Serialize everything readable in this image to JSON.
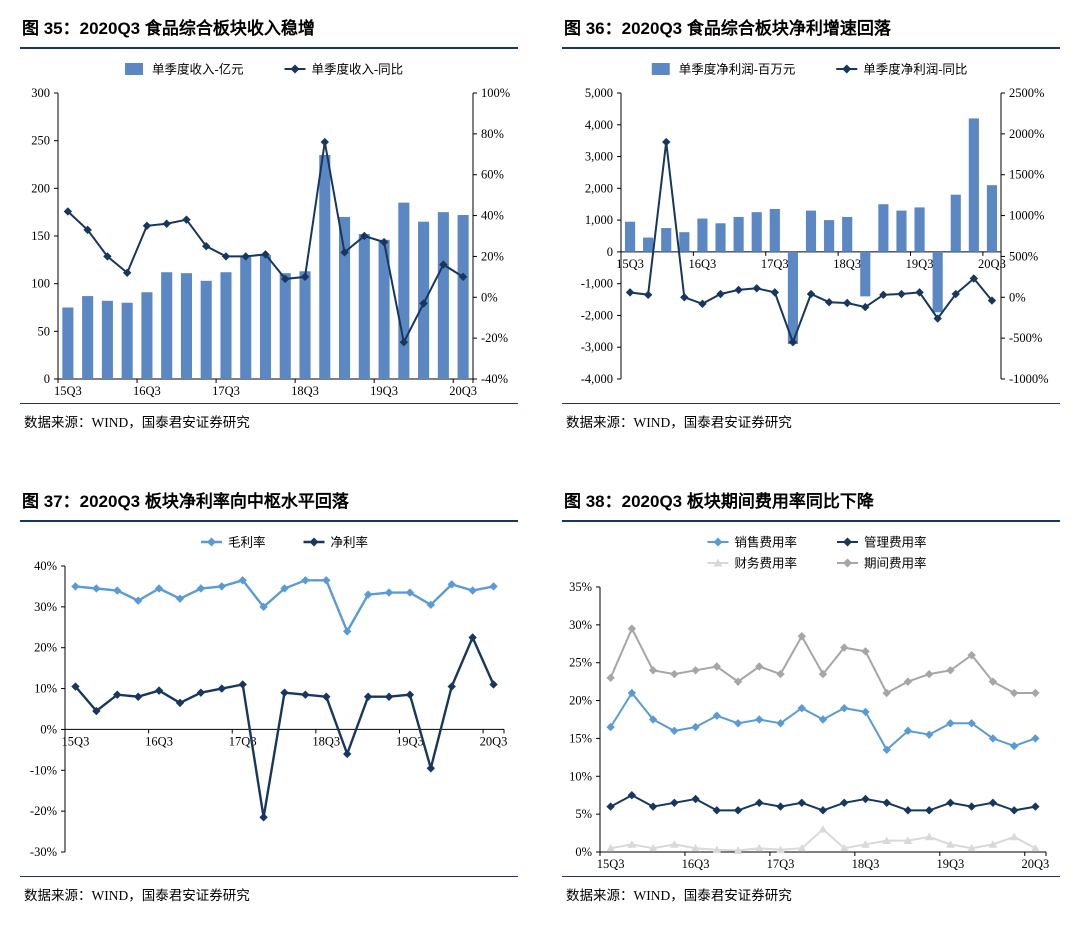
{
  "chart_data": [
    {
      "figure_id": "图 35",
      "title": "图 35：2020Q3 食品综合板块收入稳增",
      "source": "数据来源：WIND，国泰君安证券研究",
      "type": "bar+line",
      "categories": [
        "15Q3",
        "15Q4",
        "16Q1",
        "16Q2",
        "16Q3",
        "16Q4",
        "17Q1",
        "17Q2",
        "17Q3",
        "17Q4",
        "18Q1",
        "18Q2",
        "18Q3",
        "18Q4",
        "19Q1",
        "19Q2",
        "19Q3",
        "19Q4",
        "20Q1",
        "20Q2",
        "20Q3"
      ],
      "x_tick_indices": [
        0,
        4,
        8,
        12,
        16,
        20
      ],
      "x_labels_at_zero": false,
      "left_axis": {
        "min": 0,
        "max": 300,
        "step": 50,
        "format": "plain"
      },
      "right_axis": {
        "min": -40,
        "max": 100,
        "step": 20,
        "format": "percent"
      },
      "series": [
        {
          "name": "单季度收入-亿元",
          "type": "bar",
          "axis": "left",
          "color": "#5B87C3",
          "values": [
            75,
            87,
            82,
            80,
            91,
            112,
            111,
            103,
            112,
            128,
            130,
            111,
            113,
            235,
            170,
            152,
            146,
            185,
            165,
            175,
            172
          ]
        },
        {
          "name": "单季度收入-同比",
          "type": "line",
          "axis": "right",
          "color": "#17375E",
          "marker": "diamond",
          "width": 2,
          "values": [
            42,
            33,
            20,
            12,
            35,
            36,
            38,
            25,
            20,
            20,
            21,
            9,
            10,
            76,
            22,
            30,
            27,
            -22,
            -3,
            16,
            10
          ]
        }
      ]
    },
    {
      "figure_id": "图 36",
      "title": "图 36：2020Q3 食品综合板块净利增速回落",
      "source": "数据来源：WIND，国泰君安证券研究",
      "type": "bar+line",
      "categories": [
        "15Q3",
        "15Q4",
        "16Q1",
        "16Q2",
        "16Q3",
        "16Q4",
        "17Q1",
        "17Q2",
        "17Q3",
        "17Q4",
        "18Q1",
        "18Q2",
        "18Q3",
        "18Q4",
        "19Q1",
        "19Q2",
        "19Q3",
        "19Q4",
        "20Q1",
        "20Q2",
        "20Q3"
      ],
      "x_tick_indices": [
        0,
        4,
        8,
        12,
        16,
        20
      ],
      "x_labels_at_zero": true,
      "left_axis": {
        "min": -4000,
        "max": 5000,
        "step": 1000,
        "format": "thousands"
      },
      "right_axis": {
        "min": -1000,
        "max": 2500,
        "step": 500,
        "format": "percent"
      },
      "series": [
        {
          "name": "单季度净利润-百万元",
          "type": "bar",
          "axis": "left",
          "color": "#5B87C3",
          "values": [
            950,
            450,
            750,
            620,
            1050,
            900,
            1100,
            1250,
            1350,
            -2900,
            1300,
            1000,
            1100,
            -1400,
            1500,
            1300,
            1400,
            -1900,
            1800,
            4200,
            2100
          ]
        },
        {
          "name": "单季度净利润-同比",
          "type": "line",
          "axis": "right",
          "color": "#17375E",
          "marker": "diamond",
          "width": 2,
          "values": [
            60,
            30,
            1900,
            0,
            -80,
            40,
            90,
            110,
            60,
            -550,
            40,
            -60,
            -70,
            -120,
            30,
            40,
            60,
            -260,
            40,
            230,
            -40
          ]
        }
      ]
    },
    {
      "figure_id": "图 37",
      "title": "图 37：2020Q3 板块净利率向中枢水平回落",
      "source": "数据来源：WIND，国泰君安证券研究",
      "type": "line",
      "categories": [
        "15Q3",
        "15Q4",
        "16Q1",
        "16Q2",
        "16Q3",
        "16Q4",
        "17Q1",
        "17Q2",
        "17Q3",
        "17Q4",
        "18Q1",
        "18Q2",
        "18Q3",
        "18Q4",
        "19Q1",
        "19Q2",
        "19Q3",
        "19Q4",
        "20Q1",
        "20Q2",
        "20Q3"
      ],
      "x_tick_indices": [
        0,
        4,
        8,
        12,
        16,
        20
      ],
      "x_labels_at_zero": true,
      "left_axis": {
        "min": -30,
        "max": 40,
        "step": 10,
        "format": "percent"
      },
      "right_axis": null,
      "series": [
        {
          "name": "毛利率",
          "type": "line",
          "axis": "left",
          "color": "#5B9BD5",
          "marker": "diamond",
          "width": 2.4,
          "values": [
            35,
            34.5,
            34,
            31.5,
            34.5,
            32,
            34.5,
            35,
            36.5,
            30,
            34.5,
            36.5,
            36.5,
            24,
            33,
            33.5,
            33.5,
            30.5,
            35.5,
            34,
            35
          ]
        },
        {
          "name": "净利率",
          "type": "line",
          "axis": "left",
          "color": "#17375E",
          "marker": "diamond",
          "width": 2.4,
          "values": [
            10.5,
            4.5,
            8.5,
            8,
            9.5,
            6.5,
            9,
            10,
            11,
            -21.5,
            9,
            8.5,
            8,
            -6,
            8,
            8,
            8.5,
            -9.5,
            10.5,
            22.5,
            11
          ]
        }
      ]
    },
    {
      "figure_id": "图 38",
      "title": "图 38：2020Q3 板块期间费用率同比下降",
      "source": "数据来源：WIND，国泰君安证券研究",
      "type": "line",
      "categories": [
        "15Q3",
        "15Q4",
        "16Q1",
        "16Q2",
        "16Q3",
        "16Q4",
        "17Q1",
        "17Q2",
        "17Q3",
        "17Q4",
        "18Q1",
        "18Q2",
        "18Q3",
        "18Q4",
        "19Q1",
        "19Q2",
        "19Q3",
        "19Q4",
        "20Q1",
        "20Q2",
        "20Q3"
      ],
      "x_tick_indices": [
        0,
        4,
        8,
        12,
        16,
        20
      ],
      "x_labels_at_zero": false,
      "left_axis": {
        "min": 0,
        "max": 35,
        "step": 5,
        "format": "percent"
      },
      "right_axis": null,
      "series": [
        {
          "name": "销售费用率",
          "type": "line",
          "axis": "left",
          "color": "#5B9BD5",
          "marker": "diamond",
          "width": 2,
          "values": [
            16.5,
            21,
            17.5,
            16,
            16.5,
            18,
            17,
            17.5,
            17,
            19,
            17.5,
            19,
            18.5,
            13.5,
            16,
            15.5,
            17,
            17,
            15,
            14,
            15
          ]
        },
        {
          "name": "管理费用率",
          "type": "line",
          "axis": "left",
          "color": "#17375E",
          "marker": "diamond",
          "width": 2,
          "values": [
            6,
            7.5,
            6,
            6.5,
            7,
            5.5,
            5.5,
            6.5,
            6,
            6.5,
            5.5,
            6.5,
            7,
            6.5,
            5.5,
            5.5,
            6.5,
            6,
            6.5,
            5.5,
            6
          ]
        },
        {
          "name": "财务费用率",
          "type": "line",
          "axis": "left",
          "color": "#D9D9D9",
          "marker": "triangle",
          "width": 2,
          "values": [
            0.5,
            1,
            0.5,
            1,
            0.5,
            0.3,
            0.2,
            0.5,
            0.3,
            0.5,
            3,
            0.5,
            1,
            1.5,
            1.5,
            2,
            1,
            0.5,
            1,
            2,
            0.5
          ]
        },
        {
          "name": "期间费用率",
          "type": "line",
          "axis": "left",
          "color": "#A6A6A6",
          "marker": "diamond",
          "width": 2,
          "values": [
            23,
            29.5,
            24,
            23.5,
            24,
            24.5,
            22.5,
            24.5,
            23.5,
            28.5,
            23.5,
            27,
            26.5,
            21,
            22.5,
            23.5,
            24,
            26,
            22.5,
            21,
            21
          ]
        }
      ]
    }
  ],
  "style_colors": {
    "bar_blue": "#5B87C3",
    "dark_navy": "#17375E",
    "light_blue": "#5B9BD5",
    "gray": "#A6A6A6",
    "light_gray": "#D9D9D9",
    "rule_navy": "#17375E"
  }
}
